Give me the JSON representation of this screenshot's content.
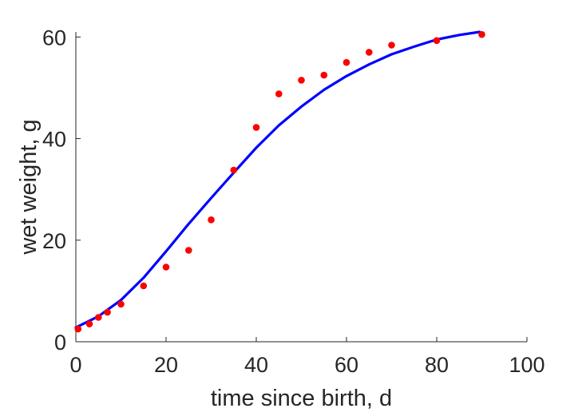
{
  "chart_data": {
    "type": "scatter",
    "xlabel": "time since birth, d",
    "ylabel": "wet weight, g",
    "xlim": [
      0,
      100
    ],
    "ylim": [
      0,
      61
    ],
    "xticks": [
      0,
      20,
      40,
      60,
      80,
      100
    ],
    "yticks": [
      0,
      20,
      40,
      60
    ],
    "grid": false,
    "series": [
      {
        "kind": "points",
        "color": "#ff0000",
        "x": [
          0.5,
          3,
          5,
          7,
          10,
          15,
          20,
          25,
          30,
          35,
          40,
          45,
          50,
          55,
          60,
          65,
          70,
          80,
          90
        ],
        "y": [
          2.5,
          3.5,
          4.8,
          5.8,
          7.4,
          11.0,
          14.7,
          18.0,
          24.0,
          33.8,
          42.2,
          48.8,
          51.5,
          52.5,
          55.0,
          57.0,
          58.4,
          59.3,
          60.5
        ]
      },
      {
        "kind": "line",
        "color": "#0000ff",
        "x": [
          0,
          5,
          10,
          15,
          20,
          25,
          30,
          35,
          40,
          45,
          50,
          55,
          60,
          65,
          70,
          75,
          80,
          85,
          89.5
        ],
        "y": [
          2.8,
          5.0,
          8.2,
          12.6,
          17.8,
          23.2,
          28.3,
          33.3,
          38.2,
          42.6,
          46.3,
          49.6,
          52.3,
          54.6,
          56.6,
          58.1,
          59.5,
          60.4,
          61.0
        ]
      }
    ]
  }
}
